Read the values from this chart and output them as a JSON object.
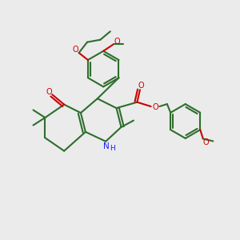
{
  "background_color": "#ebebeb",
  "bond_color": "#2d6e2d",
  "oxygen_color": "#cc0000",
  "nitrogen_color": "#1a1aff",
  "line_width": 1.5,
  "fig_size": [
    3.0,
    3.0
  ],
  "dpi": 100,
  "xlim": [
    0,
    10
  ],
  "ylim": [
    0,
    10
  ]
}
